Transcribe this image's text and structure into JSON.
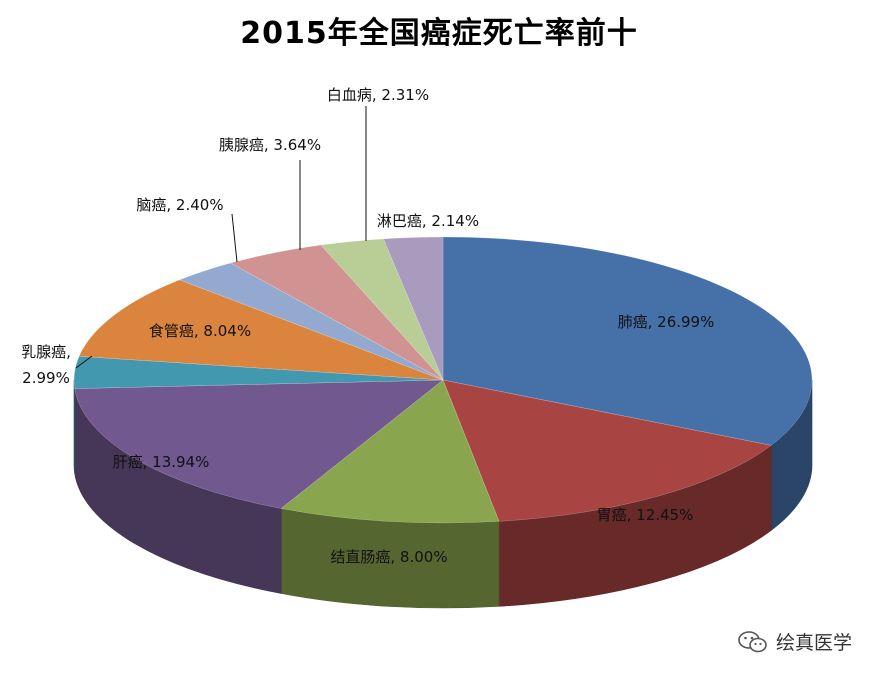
{
  "chart_data": {
    "type": "pie",
    "title": "2015年全国癌症死亡率前十",
    "slices": [
      {
        "name": "肺癌",
        "value": 26.99,
        "label": "肺癌, 26.99%",
        "color": "#4570A8"
      },
      {
        "name": "胃癌",
        "value": 12.45,
        "label": "胃癌, 12.45%",
        "color": "#A84442"
      },
      {
        "name": "结直肠癌",
        "value": 8.0,
        "label": "结直肠癌, 8.00%",
        "color": "#89A54E"
      },
      {
        "name": "肝癌",
        "value": 13.94,
        "label": "肝癌, 13.94%",
        "color": "#71588F"
      },
      {
        "name": "乳腺癌",
        "value": 2.99,
        "label": "乳腺癌,\n2.99%",
        "color": "#4198AF"
      },
      {
        "name": "食管癌",
        "value": 8.04,
        "label": "食管癌, 8.04%",
        "color": "#DB843D"
      },
      {
        "name": "脑癌",
        "value": 2.4,
        "label": "脑癌, 2.40%",
        "color": "#93A9CF"
      },
      {
        "name": "胰腺癌",
        "value": 3.64,
        "label": "胰腺癌, 3.64%",
        "color": "#D19392"
      },
      {
        "name": "白血病",
        "value": 2.31,
        "label": "白血病, 2.31%",
        "color": "#B9CD96"
      },
      {
        "name": "淋巴癌",
        "value": 2.14,
        "label": "淋巴癌, 2.14%",
        "color": "#A99BBD"
      }
    ],
    "legend": "none",
    "style": "3d"
  },
  "watermark": {
    "text": "绘真医学",
    "icon": "wechat-icon"
  }
}
